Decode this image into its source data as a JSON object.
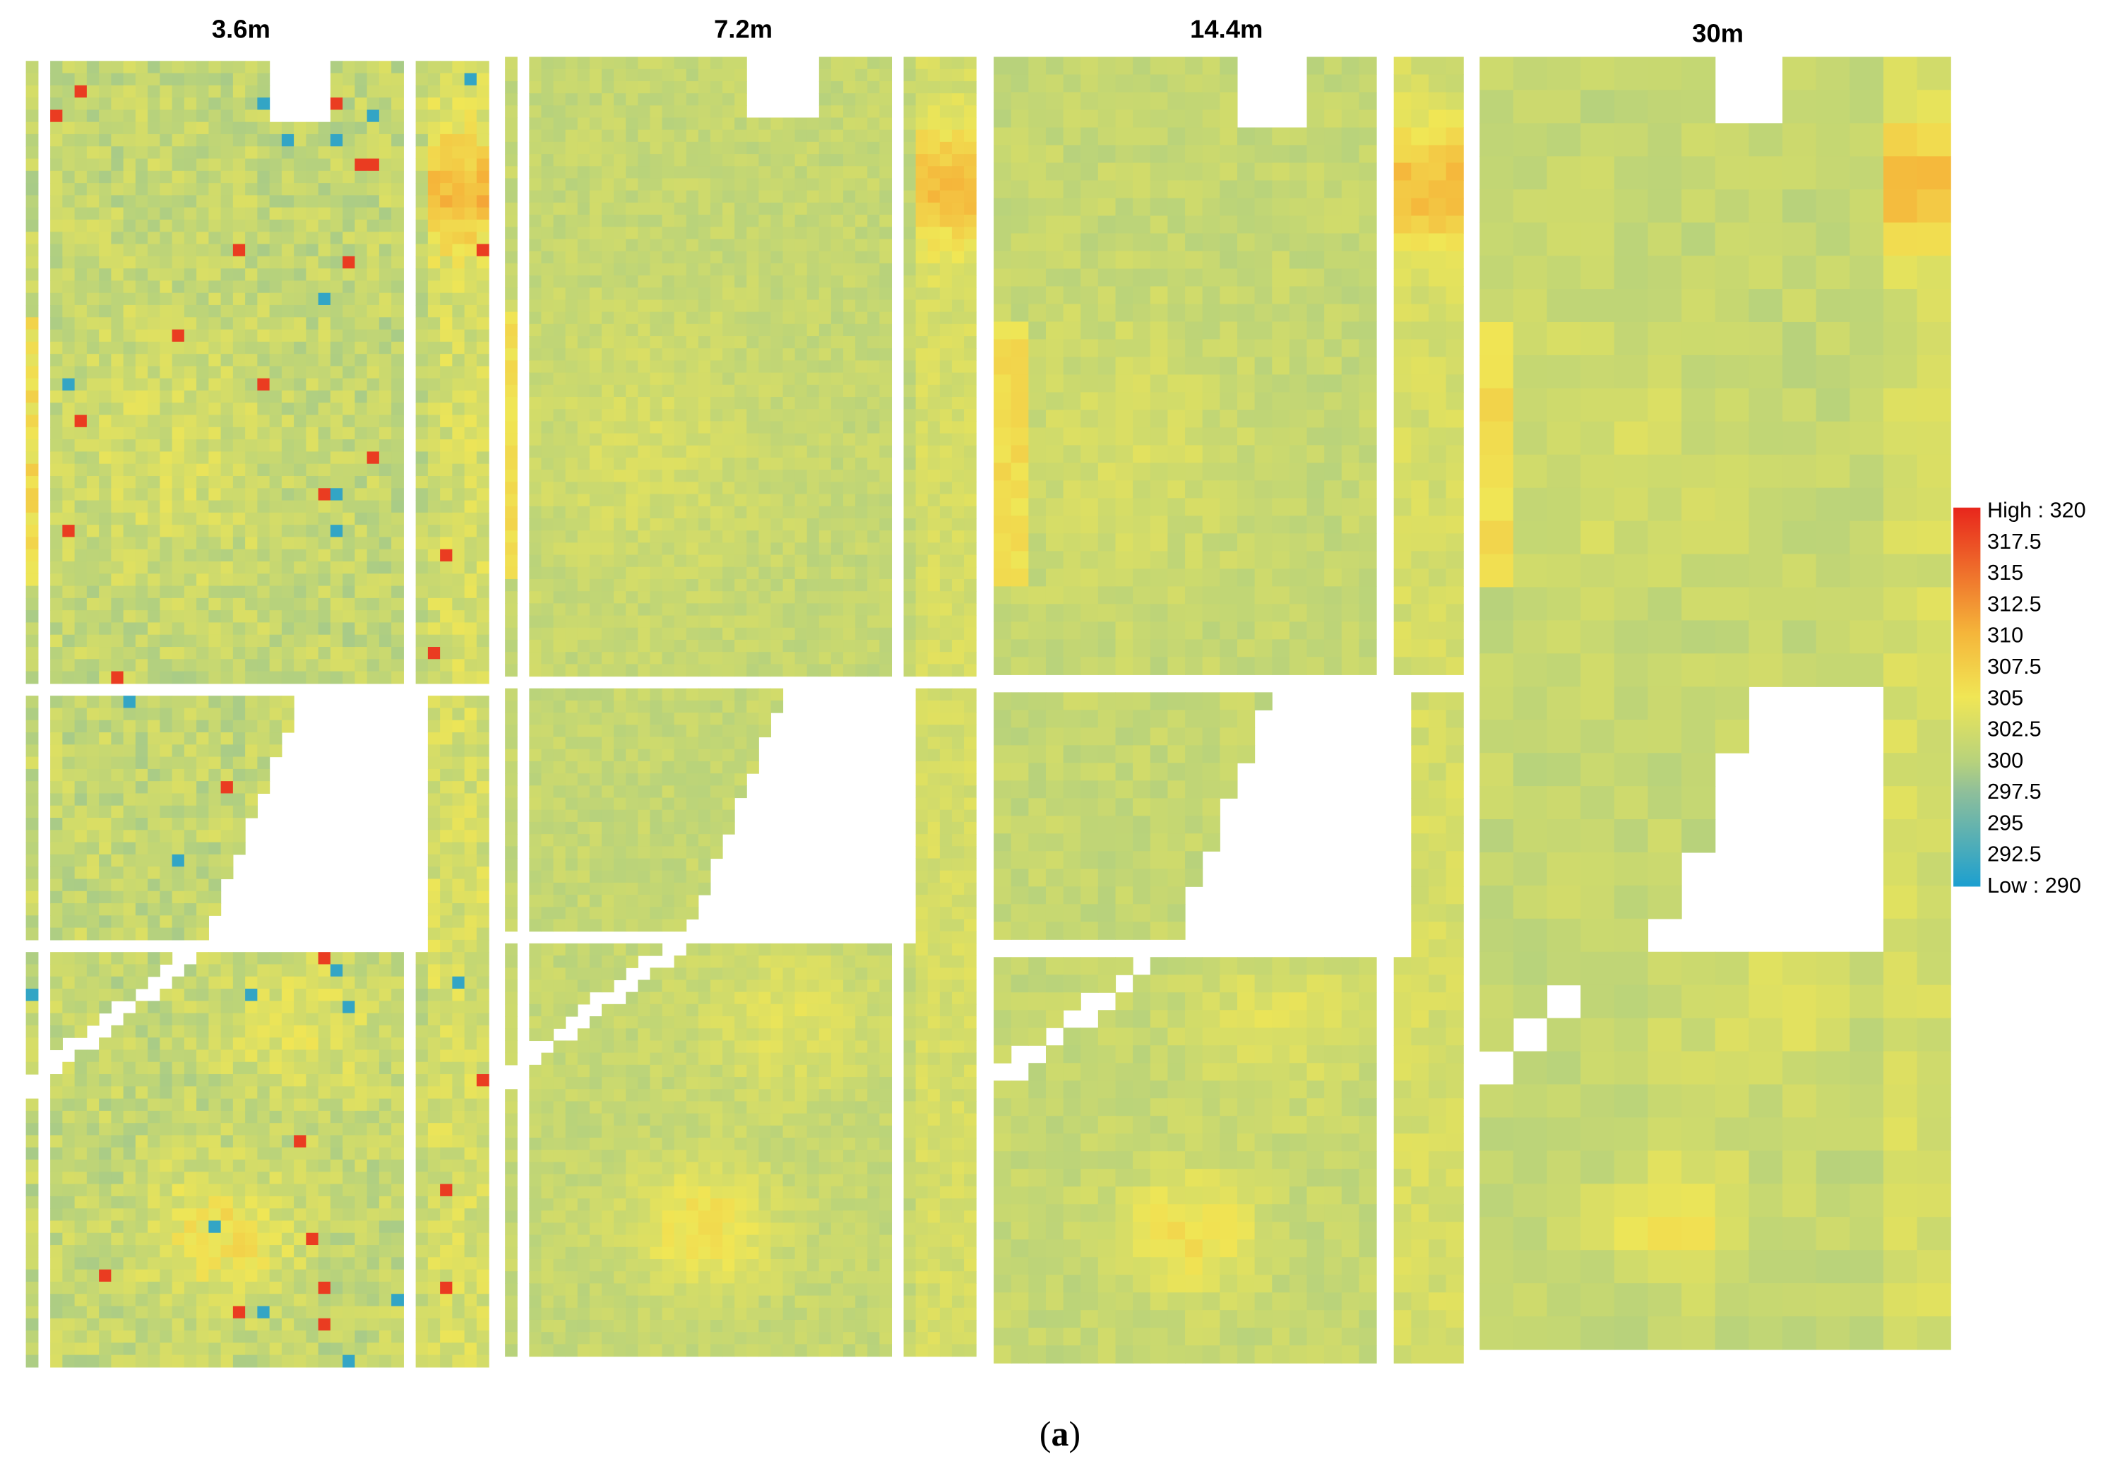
{
  "figure": {
    "panels": [
      {
        "title": "3.6m"
      },
      {
        "title": "7.2m"
      },
      {
        "title": "14.4m"
      },
      {
        "title": "30m"
      }
    ],
    "legend": {
      "labels": [
        "High : 320",
        "317.5",
        "315",
        "312.5",
        "310",
        "307.5",
        "305",
        "302.5",
        "300",
        "297.5",
        "295",
        "292.5",
        "Low : 290"
      ]
    },
    "caption": {
      "open": "(",
      "letter": "a",
      "close": ")"
    }
  }
}
